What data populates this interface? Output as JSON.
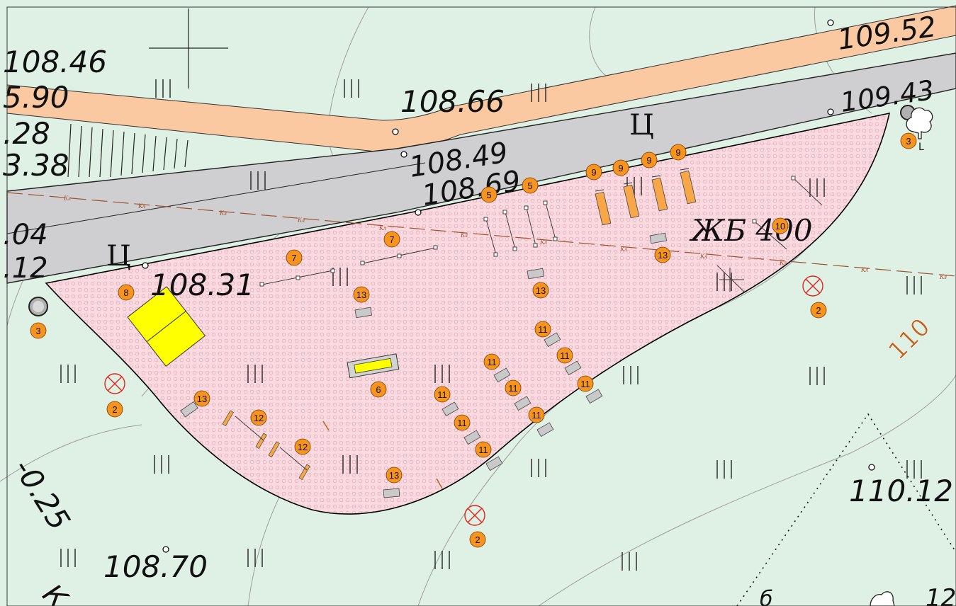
{
  "map": {
    "colors": {
      "background": "#dff0e4",
      "road_orange": "#fac9a1",
      "road_grey": "#cfcfd1",
      "site_pink": "#f8dbe1",
      "marker": "#f7941d",
      "contour": "#9d9d9d",
      "yellow": "#ffff00",
      "pipe": "#a0522d"
    },
    "labels": {
      "elev_10846": "108.46",
      "elev_590": "5.90",
      "elev_28": ".28",
      "elev_338": "3.38",
      "elev_10866": "108.66",
      "elev_10849": "108.49",
      "elev_10869": "108.69",
      "elev_10952": "109.52",
      "elev_10943": "109.43",
      "elev_04": ".04",
      "elev_12": ".12",
      "elev_10831": "108.31",
      "elev_10870": "108.70",
      "elev_11012": "110.12",
      "elev_025": "-0.25",
      "elev_12b": "12",
      "road_code_1": "Ц",
      "road_code_2": "Ц",
      "zhb": "ЖБ 400",
      "contour_110": "110",
      "kl": "Кл",
      "letter_k": "К",
      "letter_b": "б",
      "letter_l": "L"
    },
    "markers": [
      {
        "n": "3"
      },
      {
        "n": "3"
      },
      {
        "n": "8"
      },
      {
        "n": "7"
      },
      {
        "n": "7"
      },
      {
        "n": "5"
      },
      {
        "n": "5"
      },
      {
        "n": "9"
      },
      {
        "n": "9"
      },
      {
        "n": "9"
      },
      {
        "n": "9"
      },
      {
        "n": "10"
      },
      {
        "n": "13"
      },
      {
        "n": "13"
      },
      {
        "n": "13"
      },
      {
        "n": "13"
      },
      {
        "n": "13"
      },
      {
        "n": "2"
      },
      {
        "n": "2"
      },
      {
        "n": "2"
      },
      {
        "n": "6"
      },
      {
        "n": "11"
      },
      {
        "n": "11"
      },
      {
        "n": "11"
      },
      {
        "n": "11"
      },
      {
        "n": "11"
      },
      {
        "n": "11"
      },
      {
        "n": "11"
      },
      {
        "n": "11"
      },
      {
        "n": "11"
      },
      {
        "n": "11"
      },
      {
        "n": "12"
      },
      {
        "n": "12"
      }
    ]
  }
}
